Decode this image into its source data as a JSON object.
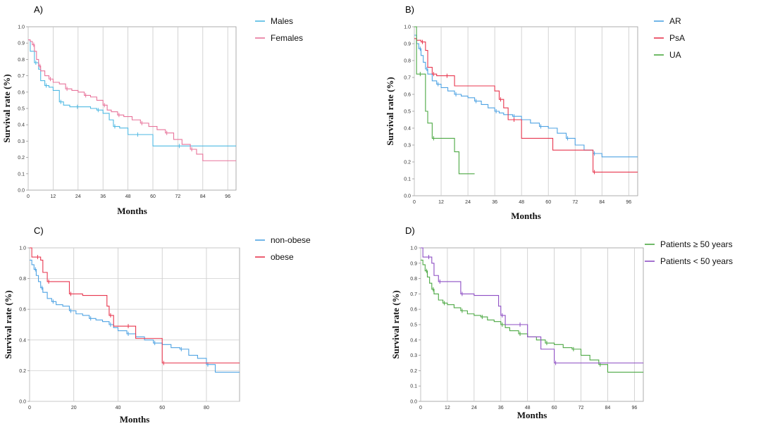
{
  "chart_data": [
    {
      "type": "line",
      "panel": "A)",
      "xlabel": "Months",
      "ylabel": "Survival rate (%)",
      "xlim": [
        0,
        100
      ],
      "ylim": [
        0,
        1
      ],
      "xticks": [
        0,
        12,
        24,
        36,
        48,
        60,
        72,
        84,
        96
      ],
      "yticks": [
        0.0,
        0.1,
        0.2,
        0.3,
        0.4,
        0.5,
        0.6,
        0.7,
        0.8,
        0.9,
        1.0
      ],
      "grid": "vertical",
      "legend_position": "right",
      "series": [
        {
          "name": "Males",
          "color": "#4fb9e3",
          "x": [
            0,
            1,
            3,
            5,
            6,
            8,
            10,
            12,
            15,
            17,
            20,
            23,
            26,
            30,
            33,
            36,
            39,
            41,
            44,
            48,
            52,
            56,
            60,
            72,
            80,
            100
          ],
          "y": [
            0.92,
            0.85,
            0.78,
            0.74,
            0.67,
            0.64,
            0.63,
            0.61,
            0.54,
            0.52,
            0.51,
            0.51,
            0.51,
            0.5,
            0.49,
            0.47,
            0.43,
            0.39,
            0.38,
            0.34,
            0.34,
            0.34,
            0.27,
            0.27,
            0.27,
            0.27
          ]
        },
        {
          "name": "Females",
          "color": "#e8749b",
          "x": [
            0,
            1,
            2,
            3,
            4,
            5,
            6,
            8,
            10,
            12,
            15,
            18,
            21,
            24,
            27,
            30,
            33,
            36,
            38,
            40,
            43,
            46,
            50,
            54,
            58,
            62,
            66,
            70,
            74,
            78,
            81,
            84,
            100
          ],
          "y": [
            0.92,
            0.91,
            0.89,
            0.85,
            0.8,
            0.76,
            0.73,
            0.7,
            0.68,
            0.66,
            0.65,
            0.62,
            0.61,
            0.6,
            0.58,
            0.57,
            0.55,
            0.52,
            0.49,
            0.48,
            0.46,
            0.45,
            0.43,
            0.41,
            0.39,
            0.37,
            0.35,
            0.31,
            0.28,
            0.25,
            0.22,
            0.18,
            0.18
          ]
        }
      ]
    },
    {
      "type": "line",
      "panel": "B)",
      "xlabel": "Months",
      "ylabel": "Survival rate (%)",
      "xlim": [
        0,
        100
      ],
      "ylim": [
        0,
        1
      ],
      "xticks": [
        0,
        12,
        24,
        36,
        48,
        60,
        72,
        84,
        96
      ],
      "yticks": [
        0.0,
        0.1,
        0.2,
        0.3,
        0.4,
        0.5,
        0.6,
        0.7,
        0.8,
        0.9,
        1.0
      ],
      "grid": "vertical",
      "legend_position": "right",
      "series": [
        {
          "name": "AR",
          "color": "#4fa3e3",
          "x": [
            0,
            1,
            2,
            3,
            4,
            5,
            6,
            8,
            10,
            12,
            15,
            18,
            21,
            24,
            27,
            30,
            33,
            36,
            38,
            40,
            44,
            48,
            52,
            56,
            60,
            64,
            68,
            72,
            76,
            80,
            84,
            100
          ],
          "y": [
            0.95,
            0.9,
            0.87,
            0.83,
            0.79,
            0.75,
            0.72,
            0.68,
            0.66,
            0.64,
            0.62,
            0.6,
            0.59,
            0.58,
            0.56,
            0.54,
            0.52,
            0.5,
            0.49,
            0.48,
            0.47,
            0.45,
            0.43,
            0.41,
            0.4,
            0.37,
            0.34,
            0.3,
            0.27,
            0.25,
            0.23,
            0.23
          ]
        },
        {
          "name": "PsA",
          "color": "#e8374f",
          "x": [
            0,
            1,
            3,
            5,
            6,
            8,
            10,
            12,
            14,
            18,
            36,
            38,
            40,
            42,
            44,
            48,
            62,
            80,
            100
          ],
          "y": [
            0.93,
            0.92,
            0.91,
            0.86,
            0.76,
            0.72,
            0.71,
            0.71,
            0.71,
            0.65,
            0.62,
            0.57,
            0.52,
            0.45,
            0.45,
            0.34,
            0.27,
            0.14,
            0.14
          ]
        },
        {
          "name": "UA",
          "color": "#4ca843",
          "x": [
            0,
            1,
            2,
            5,
            6,
            8,
            18,
            20,
            27
          ],
          "y": [
            1.0,
            0.72,
            0.72,
            0.5,
            0.43,
            0.34,
            0.26,
            0.13,
            0.13
          ]
        }
      ]
    },
    {
      "type": "line",
      "panel": "C)",
      "xlabel": "Months",
      "ylabel": "Survival rate (%)",
      "xlim": [
        0,
        95
      ],
      "ylim": [
        0,
        1
      ],
      "xticks": [
        0,
        20,
        40,
        60,
        80
      ],
      "yticks": [
        0.0,
        0.2,
        0.4,
        0.6,
        0.8,
        1.0
      ],
      "grid": "both",
      "legend_position": "right",
      "series": [
        {
          "name": "non-obese",
          "color": "#4fa3e3",
          "x": [
            0,
            1,
            2,
            3,
            4,
            5,
            6,
            8,
            10,
            12,
            15,
            18,
            21,
            24,
            27,
            30,
            33,
            36,
            38,
            40,
            44,
            48,
            52,
            56,
            60,
            64,
            68,
            72,
            76,
            80,
            84,
            95
          ],
          "y": [
            0.92,
            0.89,
            0.86,
            0.82,
            0.78,
            0.74,
            0.71,
            0.67,
            0.65,
            0.63,
            0.62,
            0.59,
            0.57,
            0.56,
            0.54,
            0.53,
            0.52,
            0.5,
            0.48,
            0.46,
            0.44,
            0.42,
            0.4,
            0.38,
            0.37,
            0.35,
            0.34,
            0.3,
            0.28,
            0.24,
            0.19,
            0.19
          ]
        },
        {
          "name": "obese",
          "color": "#e8374f",
          "x": [
            0,
            1,
            3,
            5,
            6,
            8,
            10,
            15,
            18,
            24,
            35,
            36,
            38,
            40,
            44,
            48,
            52,
            60,
            62,
            95
          ],
          "y": [
            1.0,
            0.94,
            0.94,
            0.92,
            0.84,
            0.78,
            0.78,
            0.78,
            0.7,
            0.69,
            0.62,
            0.56,
            0.49,
            0.49,
            0.49,
            0.41,
            0.41,
            0.25,
            0.25,
            0.25
          ]
        }
      ]
    },
    {
      "type": "line",
      "panel": "D)",
      "xlabel": "Months",
      "ylabel": "Survival rate (%)",
      "xlim": [
        0,
        100
      ],
      "ylim": [
        0,
        1
      ],
      "xticks": [
        0,
        12,
        24,
        36,
        48,
        60,
        72,
        84,
        96
      ],
      "yticks": [
        0.0,
        0.1,
        0.2,
        0.3,
        0.4,
        0.5,
        0.6,
        0.7,
        0.8,
        0.9,
        1.0
      ],
      "grid": "vertical",
      "legend_position": "right",
      "series": [
        {
          "name": "Patients ≥ 50 years",
          "color": "#4ca843",
          "x": [
            0,
            1,
            2,
            3,
            4,
            5,
            6,
            8,
            10,
            12,
            15,
            18,
            21,
            24,
            27,
            30,
            33,
            36,
            38,
            40,
            44,
            48,
            52,
            56,
            60,
            64,
            68,
            72,
            76,
            80,
            84,
            100
          ],
          "y": [
            0.92,
            0.89,
            0.85,
            0.81,
            0.77,
            0.73,
            0.7,
            0.66,
            0.64,
            0.63,
            0.61,
            0.59,
            0.57,
            0.56,
            0.55,
            0.53,
            0.52,
            0.5,
            0.48,
            0.46,
            0.44,
            0.42,
            0.4,
            0.38,
            0.37,
            0.35,
            0.34,
            0.3,
            0.27,
            0.24,
            0.19,
            0.19
          ]
        },
        {
          "name": "Patients < 50 years",
          "color": "#8e4fc4",
          "x": [
            0,
            1,
            3,
            5,
            6,
            8,
            12,
            15,
            18,
            24,
            35,
            36,
            38,
            40,
            44,
            48,
            54,
            60,
            62,
            100
          ],
          "y": [
            1.0,
            0.94,
            0.94,
            0.9,
            0.82,
            0.78,
            0.78,
            0.78,
            0.7,
            0.69,
            0.62,
            0.56,
            0.5,
            0.5,
            0.5,
            0.42,
            0.34,
            0.25,
            0.25,
            0.25
          ]
        }
      ]
    }
  ]
}
